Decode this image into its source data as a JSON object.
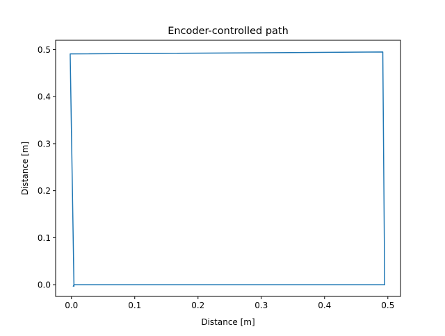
{
  "chart_data": {
    "type": "line",
    "title": "Encoder-controlled path",
    "xlabel": "Distance [m]",
    "ylabel": "Distance [m]",
    "xlim": [
      -0.025,
      0.52
    ],
    "ylim": [
      -0.025,
      0.52
    ],
    "x_ticks": [
      0.0,
      0.1,
      0.2,
      0.3,
      0.4,
      0.5
    ],
    "y_ticks": [
      0.0,
      0.1,
      0.2,
      0.3,
      0.4,
      0.5
    ],
    "x_tick_labels": [
      "0.0",
      "0.1",
      "0.2",
      "0.3",
      "0.4",
      "0.5"
    ],
    "y_tick_labels": [
      "0.0",
      "0.1",
      "0.2",
      "0.3",
      "0.4",
      "0.5"
    ],
    "grid": false,
    "series": [
      {
        "color": "#1f77b4",
        "x": [
          0.003,
          0.004,
          0.495,
          0.492,
          -0.002,
          0.004
        ],
        "y": [
          -0.003,
          0.0,
          0.0,
          0.495,
          0.491,
          -0.003
        ]
      }
    ]
  }
}
